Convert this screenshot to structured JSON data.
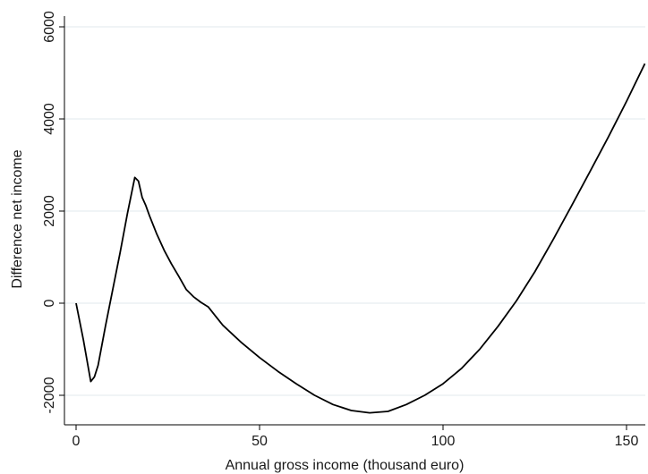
{
  "chart_data": {
    "type": "line",
    "title": "",
    "xlabel": "Annual gross income (thousand euro)",
    "ylabel": "Difference net income",
    "xlim": [
      0,
      155
    ],
    "ylim": [
      -2400,
      6000
    ],
    "x_ticks": [
      0,
      50,
      100,
      150
    ],
    "y_ticks": [
      -2000,
      0,
      2000,
      4000,
      6000
    ],
    "x_tick_labels": [
      "0",
      "50",
      "100",
      "150"
    ],
    "y_tick_labels": [
      "-2000",
      "0",
      "2000",
      "4000",
      "6000"
    ],
    "grid": "horizontal",
    "legend": "none",
    "line_color": "#000000",
    "grid_color": "#e8eef0",
    "series": [
      {
        "x": [
          0,
          2,
          4,
          5,
          6,
          8,
          10,
          12,
          14,
          16,
          17,
          18,
          19,
          20,
          22,
          24,
          26,
          28,
          30,
          32,
          34,
          36,
          38,
          40,
          45,
          50,
          55,
          60,
          65,
          70,
          75,
          80,
          85,
          90,
          95,
          100,
          105,
          110,
          115,
          120,
          125,
          130,
          135,
          140,
          145,
          150,
          155
        ],
        "y": [
          0,
          -800,
          -1700,
          -1600,
          -1350,
          -500,
          300,
          1100,
          1950,
          2730,
          2650,
          2300,
          2120,
          1900,
          1500,
          1150,
          850,
          580,
          300,
          140,
          20,
          -80,
          -280,
          -480,
          -850,
          -1180,
          -1480,
          -1750,
          -2000,
          -2200,
          -2330,
          -2380,
          -2350,
          -2200,
          -2000,
          -1750,
          -1420,
          -1000,
          -500,
          50,
          680,
          1380,
          2110,
          2850,
          3600,
          4380,
          5200
        ]
      }
    ]
  }
}
